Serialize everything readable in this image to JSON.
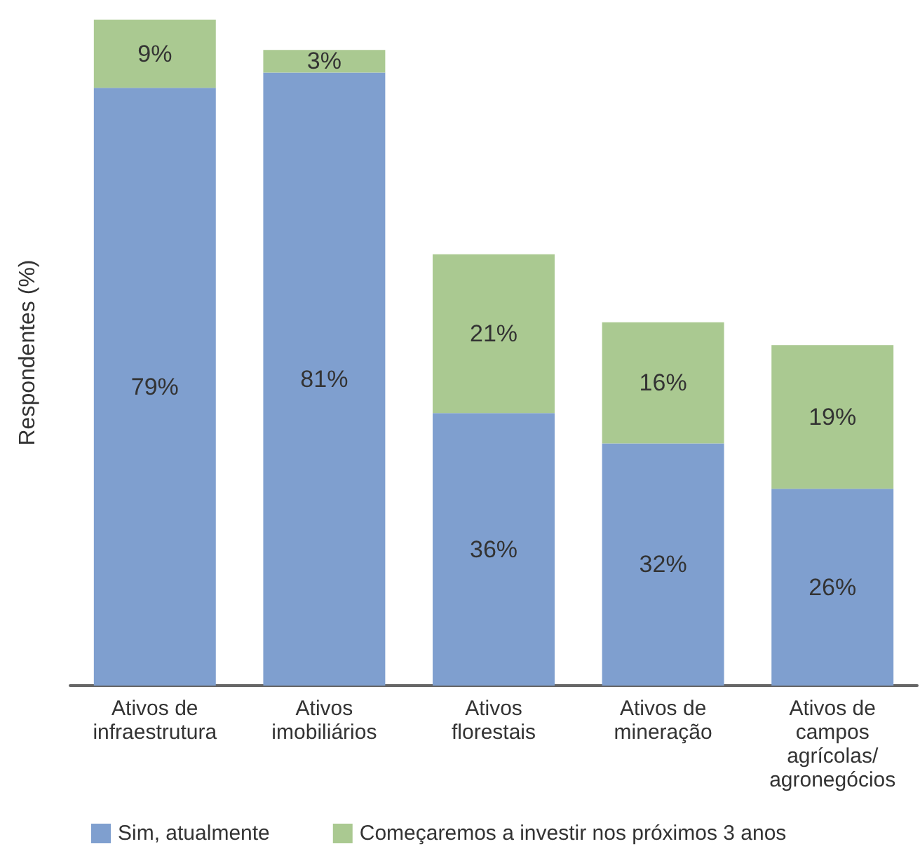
{
  "chart_data": {
    "type": "bar",
    "stacked": true,
    "ylabel": "Respondentes (%)",
    "categories": [
      "Ativos de\ninfraestrutura",
      "Ativos\nimobiliários",
      "Ativos\nflorestais",
      "Ativos de\nmineração",
      "Ativos de\ncampos\nagrícolas/\nagronegócios"
    ],
    "series": [
      {
        "name": "Sim, atualmente",
        "color": "#7f9fcf",
        "values": [
          79,
          81,
          36,
          32,
          26
        ],
        "value_labels": [
          "79%",
          "81%",
          "36%",
          "32%",
          "26%"
        ]
      },
      {
        "name": "Começaremos a investir nos próximos 3 anos",
        "color": "#aac991",
        "values": [
          9,
          3,
          21,
          16,
          19
        ],
        "value_labels": [
          "9%",
          "3%",
          "21%",
          "16%",
          "19%"
        ]
      }
    ],
    "legend": "bottom",
    "grid": false
  }
}
